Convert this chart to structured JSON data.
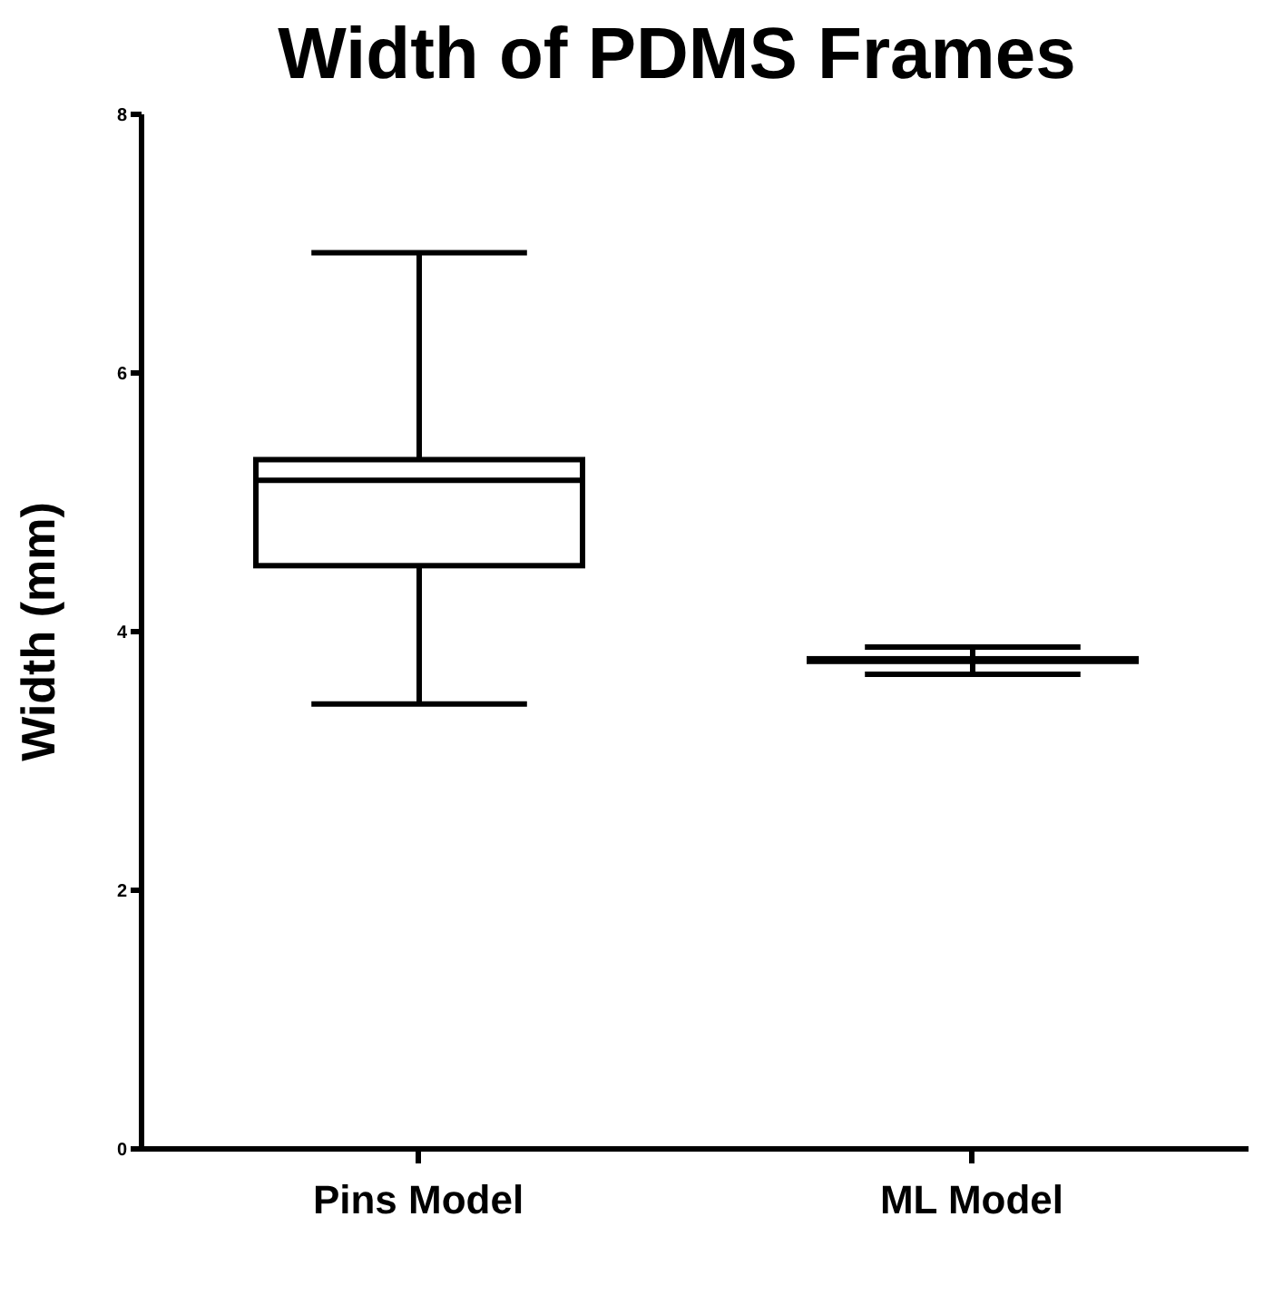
{
  "chart_data": {
    "type": "box",
    "title": "Width of PDMS Frames",
    "ylabel": "Width (mm)",
    "categories": [
      "Pins Model",
      "ML Model"
    ],
    "boxes": [
      {
        "low": 3.44,
        "q1": 4.51,
        "median": 5.17,
        "q3": 5.33,
        "high": 6.93
      },
      {
        "low": 3.67,
        "q1": 3.77,
        "median": 3.78,
        "q3": 3.79,
        "high": 3.88
      }
    ],
    "color": "#000000",
    "ylim": [
      0,
      8
    ],
    "yticks": [
      0,
      2,
      4,
      6,
      8
    ],
    "grid": false
  }
}
